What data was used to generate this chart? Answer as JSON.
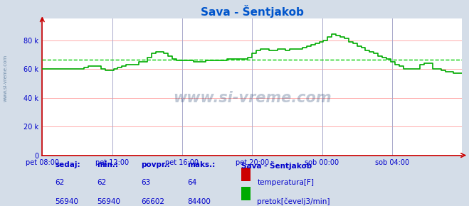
{
  "title": "Sava - Šentjakob",
  "bg_color": "#d4dde8",
  "plot_bg_color": "#ffffff",
  "line_color_flow": "#00aa00",
  "line_color_temp": "#cc0000",
  "avg_line_color": "#00cc00",
  "grid_color_h": "#ffaaaa",
  "grid_color_v": "#aaaacc",
  "axis_color": "#cc0000",
  "text_color": "#0000cc",
  "title_color": "#0055cc",
  "ylim": [
    0,
    95000
  ],
  "yticks": [
    0,
    20000,
    40000,
    60000,
    80000
  ],
  "ytick_labels": [
    "0",
    "20 k",
    "40 k",
    "60 k",
    "80 k"
  ],
  "avg_value": 66602,
  "xtick_labels": [
    "pet 08:00",
    "pet 12:00",
    "pet 16:00",
    "pet 20:00",
    "sob 00:00",
    "sob 04:00"
  ],
  "xtick_positions": [
    0.0,
    0.1667,
    0.3333,
    0.5,
    0.6667,
    0.8333
  ],
  "flow_x": [
    0.0,
    0.01,
    0.02,
    0.03,
    0.04,
    0.05,
    0.06,
    0.07,
    0.08,
    0.09,
    0.1,
    0.11,
    0.12,
    0.13,
    0.14,
    0.15,
    0.16,
    0.17,
    0.18,
    0.19,
    0.2,
    0.21,
    0.22,
    0.23,
    0.24,
    0.25,
    0.26,
    0.27,
    0.28,
    0.29,
    0.3,
    0.31,
    0.32,
    0.33,
    0.34,
    0.35,
    0.36,
    0.37,
    0.38,
    0.39,
    0.4,
    0.41,
    0.42,
    0.43,
    0.44,
    0.45,
    0.46,
    0.47,
    0.48,
    0.49,
    0.5,
    0.51,
    0.52,
    0.53,
    0.54,
    0.55,
    0.56,
    0.57,
    0.58,
    0.59,
    0.6,
    0.61,
    0.62,
    0.63,
    0.64,
    0.65,
    0.66,
    0.67,
    0.68,
    0.69,
    0.7,
    0.71,
    0.72,
    0.73,
    0.74,
    0.75,
    0.76,
    0.77,
    0.78,
    0.79,
    0.8,
    0.81,
    0.82,
    0.83,
    0.84,
    0.85,
    0.86,
    0.87,
    0.88,
    0.89,
    0.9,
    0.91,
    0.92,
    0.93,
    0.94,
    0.95,
    0.96,
    0.97,
    0.98,
    0.99,
    1.0
  ],
  "flow_y": [
    60000,
    60000,
    60000,
    60000,
    60000,
    60000,
    60000,
    60000,
    60000,
    60000,
    61000,
    62000,
    62000,
    62000,
    60000,
    59000,
    59000,
    60000,
    61000,
    62000,
    63000,
    63000,
    63000,
    65000,
    65000,
    68000,
    71000,
    72000,
    72000,
    71000,
    69000,
    67000,
    66000,
    66000,
    66000,
    66000,
    65000,
    65000,
    65000,
    66000,
    66000,
    66000,
    66000,
    66000,
    67000,
    67000,
    67000,
    67000,
    67000,
    68000,
    71000,
    73000,
    74000,
    74000,
    73000,
    73000,
    74000,
    74000,
    73000,
    74000,
    74000,
    74000,
    75000,
    76000,
    77000,
    78000,
    79000,
    80000,
    82000,
    84000,
    83000,
    82000,
    81000,
    79000,
    78000,
    76000,
    75000,
    73000,
    72000,
    71000,
    69000,
    68000,
    67000,
    65000,
    63000,
    62000,
    60000,
    60000,
    60000,
    60000,
    63000,
    64000,
    64000,
    60000,
    60000,
    59000,
    58000,
    58000,
    57000,
    57000,
    57000
  ],
  "watermark": "www.si-vreme.com",
  "stats_labels": [
    "sedaj:",
    "min.:",
    "povpr.:",
    "maks.:"
  ],
  "stats_temp": [
    "62",
    "62",
    "63",
    "64"
  ],
  "stats_flow": [
    "56940",
    "56940",
    "66602",
    "84400"
  ],
  "legend_title": "Sava - Šentjakob",
  "legend_items": [
    "temperatura[F]",
    "pretok[čevelj3/min]"
  ],
  "legend_colors": [
    "#cc0000",
    "#00aa00"
  ]
}
